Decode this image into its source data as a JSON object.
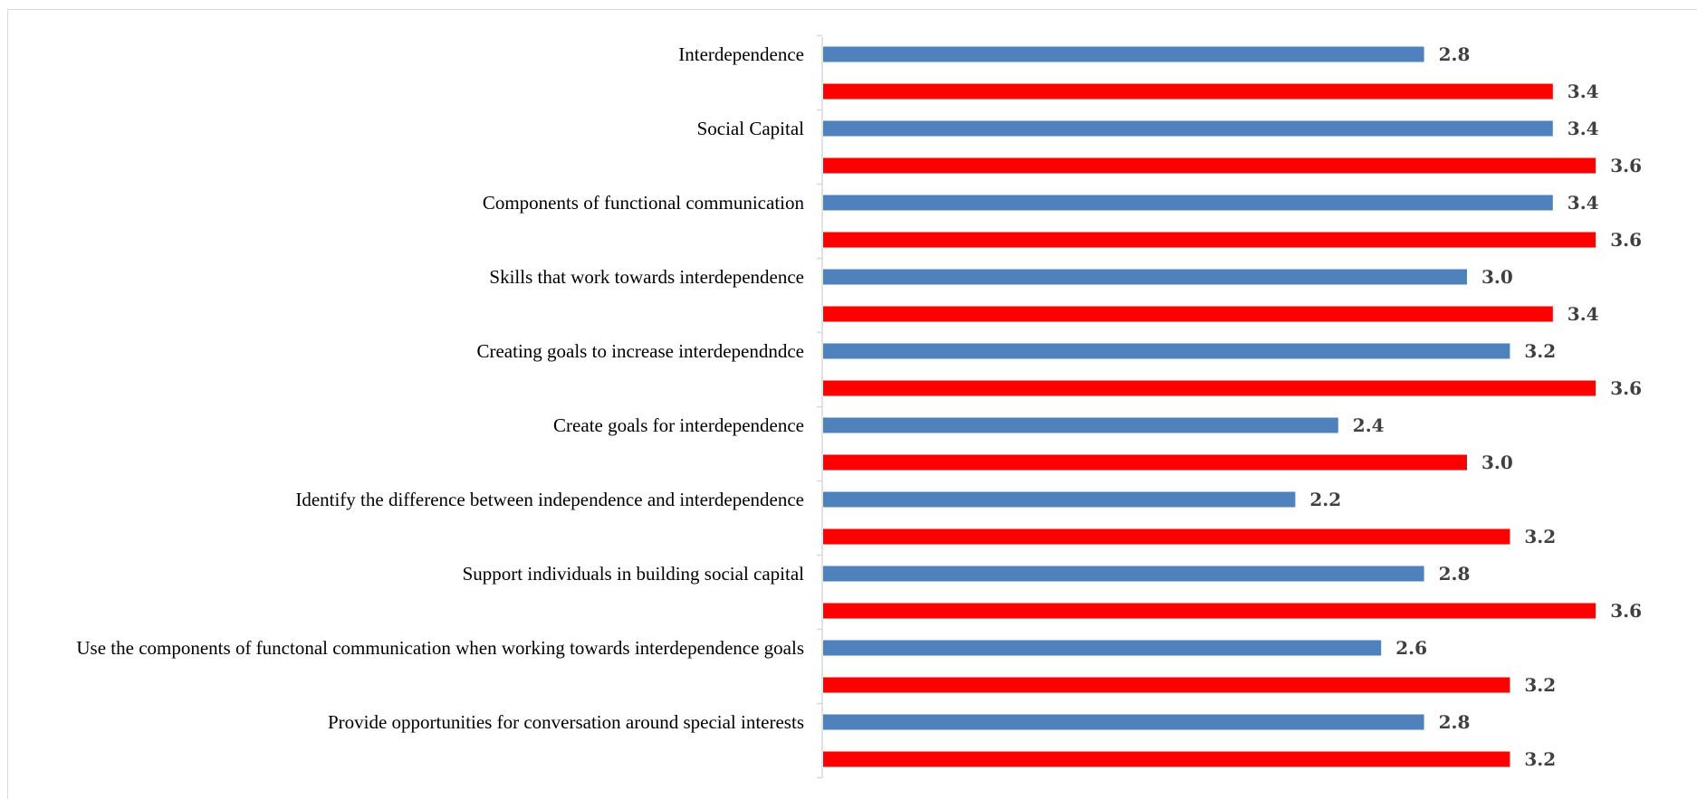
{
  "chart_data": {
    "type": "bar",
    "orientation": "horizontal",
    "categories": [
      "Interdependence",
      "Social Capital",
      "Components of functional communication",
      "Skills that work towards interdependence",
      "Creating goals to increase interdependndce",
      "Create goals for interdependence",
      "Identify the difference between independence and interdependence",
      "Support individuals in building social capital",
      "Use the components of functonal communication when working towards interdependence goals",
      "Provide opportunities for conversation around special interests"
    ],
    "series": [
      {
        "color": "#4F81BD",
        "values": [
          2.8,
          3.4,
          3.4,
          3.0,
          3.2,
          2.4,
          2.2,
          2.8,
          2.6,
          2.8
        ]
      },
      {
        "color": "#FF0000",
        "values": [
          3.4,
          3.6,
          3.6,
          3.4,
          3.6,
          3.0,
          3.2,
          3.6,
          3.2,
          3.2
        ]
      }
    ],
    "xlim": [
      0,
      3.6
    ],
    "grid": false,
    "legend": "none",
    "data_labels": true,
    "value_label_format": "1 decimal"
  }
}
